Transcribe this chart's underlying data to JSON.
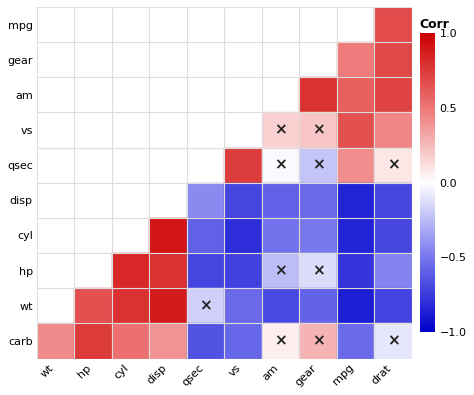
{
  "x_labels": [
    "wt",
    "hp",
    "cyl",
    "disp",
    "qsec",
    "vs",
    "am",
    "gear",
    "mpg",
    "drat"
  ],
  "y_labels": [
    "mpg",
    "gear",
    "am",
    "vs",
    "qsec",
    "disp",
    "cyl",
    "hp",
    "wt",
    "carb"
  ],
  "corr": [
    [
      null,
      null,
      null,
      null,
      null,
      null,
      null,
      null,
      null,
      0.681
    ],
    [
      null,
      null,
      null,
      null,
      null,
      null,
      null,
      null,
      0.48,
      0.7
    ],
    [
      null,
      null,
      null,
      null,
      null,
      null,
      null,
      0.794,
      0.6,
      0.713
    ],
    [
      null,
      null,
      null,
      null,
      null,
      null,
      0.168,
      0.206,
      0.664,
      0.44
    ],
    [
      null,
      null,
      null,
      null,
      null,
      0.745,
      -0.023,
      -0.213,
      0.419,
      0.091
    ],
    [
      null,
      null,
      null,
      null,
      -0.434,
      -0.71,
      -0.591,
      -0.556,
      -0.848,
      -0.71
    ],
    [
      null,
      null,
      null,
      0.902,
      -0.591,
      -0.811,
      -0.523,
      -0.493,
      -0.852,
      -0.7
    ],
    [
      null,
      null,
      0.832,
      0.791,
      -0.708,
      -0.723,
      -0.243,
      -0.126,
      -0.776,
      -0.449
    ],
    [
      null,
      0.659,
      0.782,
      0.888,
      -0.175,
      -0.555,
      -0.693,
      -0.583,
      -0.868,
      -0.712
    ],
    [
      0.428,
      0.75,
      0.527,
      0.395,
      -0.656,
      -0.57,
      0.058,
      0.274,
      -0.551,
      -0.091
    ]
  ],
  "pval": [
    [
      null,
      null,
      null,
      null,
      null,
      null,
      null,
      null,
      null,
      0.0
    ],
    [
      null,
      null,
      null,
      null,
      null,
      null,
      null,
      null,
      0.005,
      0.0
    ],
    [
      null,
      null,
      null,
      null,
      null,
      null,
      null,
      0.0,
      0.0,
      0.0
    ],
    [
      null,
      null,
      null,
      null,
      null,
      null,
      0.355,
      0.256,
      0.0,
      0.012
    ],
    [
      null,
      null,
      null,
      null,
      null,
      0.0,
      0.901,
      0.243,
      0.017,
      0.62
    ],
    [
      null,
      null,
      null,
      null,
      0.013,
      0.0,
      0.0,
      0.001,
      0.0,
      0.0
    ],
    [
      null,
      null,
      null,
      0.0,
      0.0,
      0.0,
      0.002,
      0.004,
      0.0,
      0.0
    ],
    [
      null,
      null,
      0.0,
      0.0,
      0.0,
      0.0,
      0.179,
      0.493,
      0.0,
      0.01
    ],
    [
      null,
      0.0,
      0.0,
      0.0,
      0.339,
      0.001,
      0.0,
      0.0,
      0.0,
      0.0
    ],
    [
      0.015,
      0.0,
      0.002,
      0.025,
      0.0,
      0.001,
      0.753,
      0.13,
      0.002,
      0.621
    ]
  ],
  "colorbar_label": "Corr",
  "colorbar_ticks": [
    1.0,
    0.5,
    0.0,
    -0.5,
    -1.0
  ],
  "p_threshold": 0.05,
  "cell_bg": "#ffffff",
  "plot_bg": "#ffffff",
  "grid_color": "#dddddd",
  "cmap_colors": [
    [
      0.0,
      "#0000cc"
    ],
    [
      0.25,
      "#7777ee"
    ],
    [
      0.5,
      "#ffffff"
    ],
    [
      0.75,
      "#ee7777"
    ],
    [
      1.0,
      "#cc0000"
    ]
  ],
  "figsize": [
    4.74,
    3.95
  ],
  "dpi": 100
}
